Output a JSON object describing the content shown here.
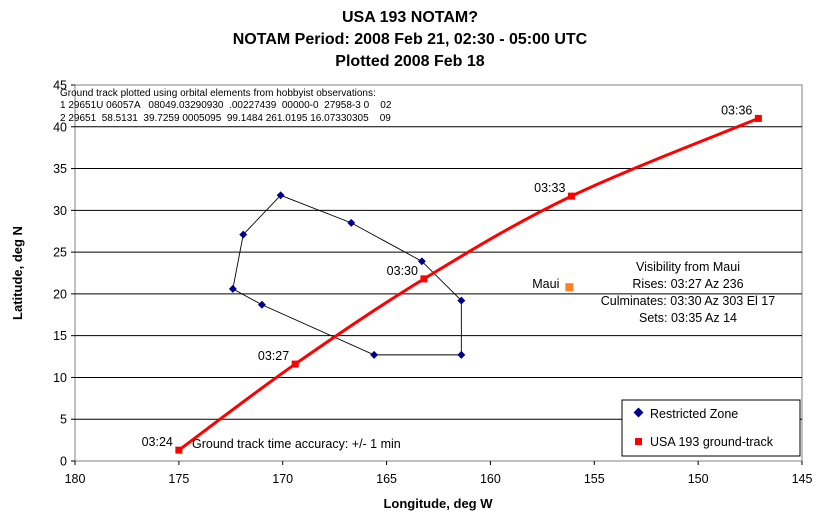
{
  "chart_data": {
    "type": "scatter",
    "title": [
      "USA 193 NOTAM?",
      "NOTAM Period: 2008 Feb 21, 02:30 - 05:00 UTC",
      "Plotted 2008 Feb 18"
    ],
    "xlabel": "Longitude, deg W",
    "ylabel": "Latitude, deg N",
    "xlim": [
      180,
      145
    ],
    "ylim": [
      0,
      45
    ],
    "x_ticks": [
      180,
      175,
      170,
      165,
      160,
      155,
      150,
      145
    ],
    "y_ticks": [
      0,
      5,
      10,
      15,
      20,
      25,
      30,
      35,
      40,
      45
    ],
    "grid": "horizontal",
    "legend_position": "bottom-right",
    "series": [
      {
        "name": "Restricted Zone",
        "color": "#00008b",
        "marker": "diamond",
        "line": "thin-black",
        "points": [
          [
            170.1,
            31.8
          ],
          [
            166.7,
            28.5
          ],
          [
            163.3,
            23.9
          ],
          [
            161.4,
            19.2
          ],
          [
            161.4,
            12.7
          ],
          [
            165.6,
            12.7
          ],
          [
            171.0,
            18.7
          ],
          [
            172.4,
            20.6
          ],
          [
            171.9,
            27.1
          ],
          [
            170.1,
            31.8
          ]
        ]
      },
      {
        "name": "USA 193 ground-track",
        "color": "#ff0000",
        "marker": "square",
        "line": "smooth-red",
        "points": [
          [
            175.0,
            1.3
          ],
          [
            169.4,
            11.6
          ],
          [
            163.2,
            21.8
          ],
          [
            156.1,
            31.7
          ],
          [
            147.1,
            41.0
          ]
        ],
        "labels": [
          "03:24",
          "03:27",
          "03:30",
          "03:33",
          "03:36"
        ]
      }
    ],
    "maui": {
      "label": "Maui",
      "x": 156.2,
      "y": 20.8,
      "color": "#ff7f27"
    },
    "elements_note": [
      "Ground track plotted using orbital elements from hobbyist observations:",
      "1 29651U 06057A   08049.03290930  .00227439  00000-0  27958-3 0    02",
      "2 29651  58.5131  39.7259 0005095  99.1484 261.0195 16.07330305    09"
    ],
    "visibility": [
      "Visibility from Maui",
      "Rises: 03:27 Az 236",
      "Culminates: 03:30 Az 303 El 17",
      "Sets: 03:35 Az 14"
    ],
    "accuracy_note": "Ground track time accuracy: +/- 1 min"
  }
}
